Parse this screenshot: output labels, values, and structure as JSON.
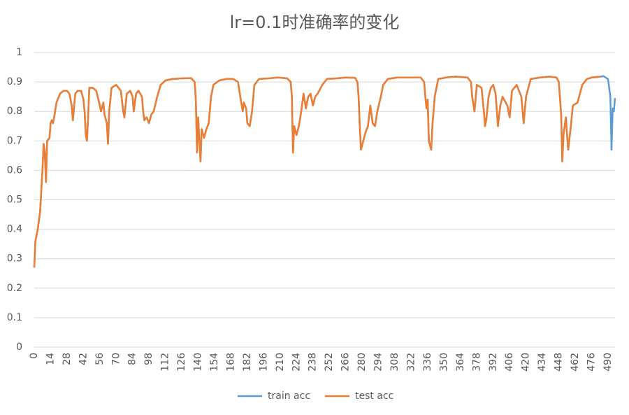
{
  "chart_data": {
    "type": "line",
    "title": "lr=0.1时准确率的变化",
    "x": [
      0,
      1,
      3,
      5,
      7,
      8,
      9,
      10,
      11,
      13,
      14,
      15,
      16,
      17,
      19,
      22,
      25,
      28,
      30,
      32,
      33,
      35,
      37,
      40,
      42,
      43,
      44,
      45,
      46,
      47,
      50,
      53,
      56,
      57,
      59,
      60,
      62,
      63,
      64,
      66,
      70,
      74,
      76,
      77,
      79,
      82,
      84,
      85,
      87,
      89,
      92,
      93,
      94,
      96,
      98,
      100,
      102,
      105,
      108,
      112,
      118,
      126,
      134,
      137,
      138,
      139,
      140,
      141,
      142,
      143,
      145,
      147,
      149,
      151,
      153,
      158,
      164,
      170,
      174,
      176,
      178,
      179,
      181,
      182,
      184,
      186,
      188,
      192,
      200,
      208,
      216,
      219,
      220,
      221,
      222,
      224,
      226,
      228,
      230,
      232,
      234,
      236,
      238,
      240,
      242,
      246,
      250,
      258,
      266,
      274,
      276,
      277,
      278,
      279,
      281,
      283,
      285,
      287,
      289,
      291,
      293,
      296,
      298,
      302,
      310,
      320,
      330,
      333,
      334,
      335,
      336,
      337,
      339,
      340,
      342,
      345,
      352,
      360,
      370,
      373,
      374,
      376,
      378,
      382,
      384,
      385,
      386,
      388,
      390,
      392,
      394,
      396,
      398,
      400,
      404,
      406,
      408,
      412,
      416,
      418,
      420,
      424,
      432,
      440,
      446,
      448,
      450,
      451,
      452,
      454,
      456,
      458,
      460,
      464,
      468,
      472,
      476,
      484,
      486,
      490,
      492,
      493,
      494,
      495,
      496
    ],
    "series": [
      {
        "name": "train acc",
        "color": "#5b9bd5",
        "values": [
          0.27,
          0.36,
          0.4,
          0.46,
          0.6,
          0.69,
          0.66,
          0.56,
          0.7,
          0.71,
          0.76,
          0.77,
          0.76,
          0.78,
          0.83,
          0.86,
          0.87,
          0.87,
          0.86,
          0.82,
          0.77,
          0.86,
          0.87,
          0.87,
          0.84,
          0.8,
          0.72,
          0.7,
          0.78,
          0.88,
          0.88,
          0.87,
          0.82,
          0.8,
          0.83,
          0.79,
          0.76,
          0.69,
          0.8,
          0.88,
          0.89,
          0.87,
          0.8,
          0.78,
          0.86,
          0.87,
          0.85,
          0.8,
          0.86,
          0.87,
          0.85,
          0.8,
          0.77,
          0.78,
          0.76,
          0.79,
          0.8,
          0.85,
          0.89,
          0.905,
          0.91,
          0.912,
          0.913,
          0.9,
          0.84,
          0.66,
          0.78,
          0.7,
          0.63,
          0.74,
          0.71,
          0.74,
          0.76,
          0.85,
          0.89,
          0.905,
          0.91,
          0.91,
          0.9,
          0.85,
          0.8,
          0.83,
          0.81,
          0.76,
          0.75,
          0.8,
          0.89,
          0.91,
          0.912,
          0.915,
          0.912,
          0.9,
          0.85,
          0.66,
          0.75,
          0.72,
          0.75,
          0.8,
          0.86,
          0.81,
          0.85,
          0.86,
          0.82,
          0.85,
          0.86,
          0.89,
          0.91,
          0.912,
          0.915,
          0.914,
          0.9,
          0.85,
          0.75,
          0.67,
          0.7,
          0.73,
          0.75,
          0.82,
          0.76,
          0.75,
          0.8,
          0.85,
          0.89,
          0.91,
          0.915,
          0.915,
          0.915,
          0.9,
          0.85,
          0.81,
          0.84,
          0.7,
          0.67,
          0.75,
          0.85,
          0.91,
          0.915,
          0.918,
          0.915,
          0.9,
          0.85,
          0.8,
          0.89,
          0.88,
          0.8,
          0.75,
          0.77,
          0.85,
          0.88,
          0.89,
          0.86,
          0.75,
          0.82,
          0.85,
          0.82,
          0.78,
          0.87,
          0.89,
          0.85,
          0.76,
          0.85,
          0.91,
          0.915,
          0.918,
          0.915,
          0.9,
          0.79,
          0.63,
          0.72,
          0.78,
          0.67,
          0.74,
          0.82,
          0.83,
          0.89,
          0.91,
          0.915,
          0.918,
          0.92,
          0.91,
          0.85,
          0.67,
          0.81,
          0.8,
          0.845
        ]
      },
      {
        "name": "test acc",
        "color": "#ed7d31",
        "values": [
          0.27,
          0.36,
          0.4,
          0.46,
          0.6,
          0.69,
          0.66,
          0.56,
          0.7,
          0.71,
          0.76,
          0.77,
          0.76,
          0.78,
          0.83,
          0.86,
          0.87,
          0.87,
          0.86,
          0.82,
          0.77,
          0.86,
          0.87,
          0.87,
          0.84,
          0.8,
          0.72,
          0.7,
          0.78,
          0.88,
          0.88,
          0.87,
          0.82,
          0.8,
          0.83,
          0.79,
          0.76,
          0.69,
          0.8,
          0.88,
          0.89,
          0.87,
          0.8,
          0.78,
          0.86,
          0.87,
          0.85,
          0.8,
          0.86,
          0.87,
          0.85,
          0.8,
          0.77,
          0.78,
          0.76,
          0.79,
          0.8,
          0.85,
          0.89,
          0.905,
          0.91,
          0.912,
          0.913,
          0.9,
          0.84,
          0.66,
          0.78,
          0.7,
          0.63,
          0.74,
          0.71,
          0.74,
          0.76,
          0.85,
          0.89,
          0.905,
          0.91,
          0.91,
          0.9,
          0.85,
          0.8,
          0.83,
          0.81,
          0.76,
          0.75,
          0.8,
          0.89,
          0.91,
          0.912,
          0.915,
          0.912,
          0.9,
          0.85,
          0.66,
          0.75,
          0.72,
          0.75,
          0.8,
          0.86,
          0.81,
          0.85,
          0.86,
          0.82,
          0.85,
          0.86,
          0.89,
          0.91,
          0.912,
          0.915,
          0.914,
          0.9,
          0.85,
          0.75,
          0.67,
          0.7,
          0.73,
          0.75,
          0.82,
          0.76,
          0.75,
          0.8,
          0.85,
          0.89,
          0.91,
          0.915,
          0.915,
          0.915,
          0.9,
          0.85,
          0.81,
          0.84,
          0.7,
          0.67,
          0.75,
          0.85,
          0.91,
          0.915,
          0.918,
          0.915,
          0.9,
          0.85,
          0.8,
          0.89,
          0.88,
          0.8,
          0.75,
          0.77,
          0.85,
          0.88,
          0.89,
          0.86,
          0.75,
          0.82,
          0.85,
          0.82,
          0.78,
          0.87,
          0.89,
          0.85,
          0.76,
          0.85,
          0.91,
          0.915,
          0.918,
          0.915,
          0.9,
          0.79,
          0.63,
          0.72,
          0.78,
          0.67,
          0.74,
          0.82,
          0.83,
          0.89,
          0.91,
          0.915,
          0.918,
          null,
          null,
          null,
          null,
          null,
          null,
          null
        ]
      }
    ],
    "xlim": [
      0,
      496
    ],
    "xticks": [
      0,
      14,
      28,
      42,
      56,
      70,
      84,
      98,
      112,
      126,
      140,
      154,
      168,
      182,
      196,
      210,
      224,
      238,
      252,
      266,
      280,
      294,
      308,
      322,
      336,
      350,
      364,
      378,
      392,
      406,
      420,
      434,
      448,
      462,
      476,
      490
    ],
    "ylim": [
      0,
      1
    ],
    "yticks": [
      0,
      0.1,
      0.2,
      0.3,
      0.4,
      0.5,
      0.6,
      0.7,
      0.8,
      0.9,
      1
    ],
    "grid": true,
    "legend": "bottom"
  }
}
